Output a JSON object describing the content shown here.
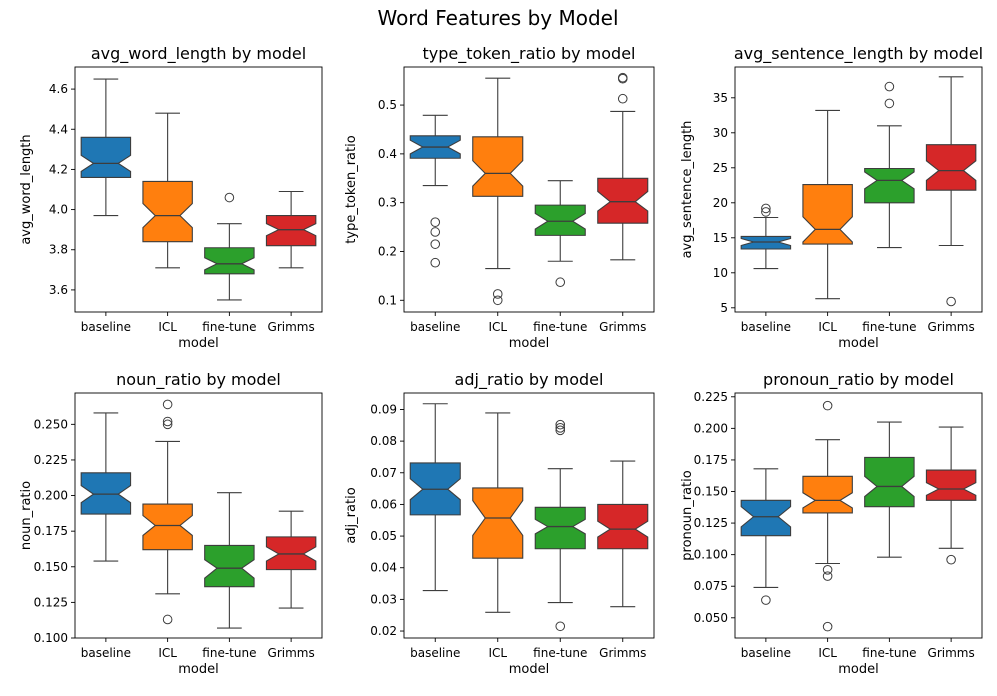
{
  "figure": {
    "title": "Word Features by Model"
  },
  "colors": {
    "baseline": "#1f77b4",
    "ICL": "#ff7f0e",
    "fine-tune": "#2ca02c",
    "Grimms": "#d62728",
    "line": "#3d3d3d"
  },
  "chart_data": [
    {
      "type": "box",
      "title": "avg_word_length by model",
      "xlabel": "model",
      "ylabel": "avg_word_length",
      "categories": [
        "baseline",
        "ICL",
        "fine-tune",
        "Grimms"
      ],
      "ylim": [
        3.49,
        4.71
      ],
      "yticks": [
        3.6,
        3.8,
        4.0,
        4.2,
        4.4,
        4.6
      ],
      "yticklabels": [
        "3.6",
        "3.8",
        "4.0",
        "4.2",
        "4.4",
        "4.6"
      ],
      "boxes": [
        {
          "whislo": 3.97,
          "q1": 4.16,
          "med": 4.23,
          "q3": 4.36,
          "whishi": 4.65,
          "notch": [
            4.19,
            4.27
          ],
          "fliers": []
        },
        {
          "whislo": 3.71,
          "q1": 3.84,
          "med": 3.97,
          "q3": 4.14,
          "whishi": 4.48,
          "notch": [
            3.91,
            4.03
          ],
          "fliers": []
        },
        {
          "whislo": 3.55,
          "q1": 3.68,
          "med": 3.73,
          "q3": 3.81,
          "whishi": 3.93,
          "notch": [
            3.7,
            3.76
          ],
          "fliers": [
            4.06
          ]
        },
        {
          "whislo": 3.71,
          "q1": 3.82,
          "med": 3.9,
          "q3": 3.97,
          "whishi": 4.09,
          "notch": [
            3.87,
            3.93
          ],
          "fliers": []
        }
      ]
    },
    {
      "type": "box",
      "title": "type_token_ratio by model",
      "xlabel": "model",
      "ylabel": "type_token_ratio",
      "categories": [
        "baseline",
        "ICL",
        "fine-tune",
        "Grimms"
      ],
      "ylim": [
        0.076,
        0.578
      ],
      "yticks": [
        0.1,
        0.2,
        0.3,
        0.4,
        0.5
      ],
      "yticklabels": [
        "0.1",
        "0.2",
        "0.3",
        "0.4",
        "0.5"
      ],
      "boxes": [
        {
          "whislo": 0.335,
          "q1": 0.391,
          "med": 0.414,
          "q3": 0.437,
          "whishi": 0.479,
          "notch": [
            0.4,
            0.428
          ],
          "fliers": [
            0.26,
            0.24,
            0.215,
            0.177
          ]
        },
        {
          "whislo": 0.165,
          "q1": 0.313,
          "med": 0.36,
          "q3": 0.435,
          "whishi": 0.555,
          "notch": [
            0.334,
            0.386
          ],
          "fliers": [
            0.113,
            0.1
          ]
        },
        {
          "whislo": 0.18,
          "q1": 0.233,
          "med": 0.262,
          "q3": 0.295,
          "whishi": 0.345,
          "notch": [
            0.246,
            0.278
          ],
          "fliers": [
            0.137
          ]
        },
        {
          "whislo": 0.183,
          "q1": 0.258,
          "med": 0.302,
          "q3": 0.35,
          "whishi": 0.487,
          "notch": [
            0.283,
            0.323
          ],
          "fliers": [
            0.556,
            0.554,
            0.513
          ]
        }
      ]
    },
    {
      "type": "box",
      "title": "avg_sentence_length by model",
      "xlabel": "model",
      "ylabel": "avg_sentence_length",
      "categories": [
        "baseline",
        "ICL",
        "fine-tune",
        "Grimms"
      ],
      "ylim": [
        4.4,
        39.4
      ],
      "yticks": [
        5,
        10,
        15,
        20,
        25,
        30,
        35
      ],
      "yticklabels": [
        "5",
        "10",
        "15",
        "20",
        "25",
        "30",
        "35"
      ],
      "boxes": [
        {
          "whislo": 10.6,
          "q1": 13.4,
          "med": 14.4,
          "q3": 15.2,
          "whishi": 17.9,
          "notch": [
            13.9,
            14.9
          ],
          "fliers": [
            19.2,
            18.7
          ]
        },
        {
          "whislo": 6.3,
          "q1": 14.1,
          "med": 16.2,
          "q3": 22.6,
          "whishi": 33.2,
          "notch": [
            14.4,
            18.0
          ],
          "fliers": []
        },
        {
          "whislo": 13.6,
          "q1": 20.0,
          "med": 23.2,
          "q3": 24.9,
          "whishi": 31.0,
          "notch": [
            22.0,
            24.4
          ],
          "fliers": [
            36.6,
            34.2
          ]
        },
        {
          "whislo": 13.9,
          "q1": 21.8,
          "med": 24.6,
          "q3": 28.3,
          "whishi": 38.0,
          "notch": [
            23.2,
            26.0
          ],
          "fliers": [
            5.9
          ]
        }
      ]
    },
    {
      "type": "box",
      "title": "noun_ratio by model",
      "xlabel": "model",
      "ylabel": "noun_ratio",
      "categories": [
        "baseline",
        "ICL",
        "fine-tune",
        "Grimms"
      ],
      "ylim": [
        0.1,
        0.272
      ],
      "yticks": [
        0.1,
        0.125,
        0.15,
        0.175,
        0.2,
        0.225,
        0.25
      ],
      "yticklabels": [
        "0.100",
        "0.125",
        "0.150",
        "0.175",
        "0.200",
        "0.225",
        "0.250"
      ],
      "boxes": [
        {
          "whislo": 0.154,
          "q1": 0.187,
          "med": 0.201,
          "q3": 0.216,
          "whishi": 0.258,
          "notch": [
            0.195,
            0.207
          ],
          "fliers": []
        },
        {
          "whislo": 0.131,
          "q1": 0.162,
          "med": 0.179,
          "q3": 0.194,
          "whishi": 0.238,
          "notch": [
            0.172,
            0.186
          ],
          "fliers": [
            0.264,
            0.252,
            0.25,
            0.113
          ]
        },
        {
          "whislo": 0.107,
          "q1": 0.136,
          "med": 0.149,
          "q3": 0.165,
          "whishi": 0.202,
          "notch": [
            0.142,
            0.155
          ],
          "fliers": []
        },
        {
          "whislo": 0.121,
          "q1": 0.148,
          "med": 0.159,
          "q3": 0.171,
          "whishi": 0.189,
          "notch": [
            0.154,
            0.164
          ],
          "fliers": []
        }
      ]
    },
    {
      "type": "box",
      "title": "adj_ratio by model",
      "xlabel": "model",
      "ylabel": "adj_ratio",
      "categories": [
        "baseline",
        "ICL",
        "fine-tune",
        "Grimms"
      ],
      "ylim": [
        0.0178,
        0.0952
      ],
      "yticks": [
        0.02,
        0.03,
        0.04,
        0.05,
        0.06,
        0.07,
        0.08,
        0.09
      ],
      "yticklabels": [
        "0.02",
        "0.03",
        "0.04",
        "0.05",
        "0.06",
        "0.07",
        "0.08",
        "0.09"
      ],
      "boxes": [
        {
          "whislo": 0.0328,
          "q1": 0.0567,
          "med": 0.0648,
          "q3": 0.0731,
          "whishi": 0.0918,
          "notch": [
            0.0615,
            0.0681
          ],
          "fliers": []
        },
        {
          "whislo": 0.0259,
          "q1": 0.043,
          "med": 0.0557,
          "q3": 0.0652,
          "whishi": 0.0889,
          "notch": [
            0.0502,
            0.0612
          ],
          "fliers": []
        },
        {
          "whislo": 0.029,
          "q1": 0.046,
          "med": 0.053,
          "q3": 0.0591,
          "whishi": 0.0713,
          "notch": [
            0.0507,
            0.0553
          ],
          "fliers": [
            0.0852,
            0.0842,
            0.0834,
            0.0215
          ]
        },
        {
          "whislo": 0.0277,
          "q1": 0.046,
          "med": 0.0522,
          "q3": 0.06,
          "whishi": 0.0737,
          "notch": [
            0.0497,
            0.0547
          ],
          "fliers": []
        }
      ]
    },
    {
      "type": "box",
      "title": "pronoun_ratio by model",
      "xlabel": "model",
      "ylabel": "pronoun_ratio",
      "categories": [
        "baseline",
        "ICL",
        "fine-tune",
        "Grimms"
      ],
      "ylim": [
        0.034,
        0.228
      ],
      "yticks": [
        0.05,
        0.075,
        0.1,
        0.125,
        0.15,
        0.175,
        0.2,
        0.225
      ],
      "yticklabels": [
        "0.050",
        "0.075",
        "0.100",
        "0.125",
        "0.150",
        "0.175",
        "0.200",
        "0.225"
      ],
      "boxes": [
        {
          "whislo": 0.074,
          "q1": 0.115,
          "med": 0.13,
          "q3": 0.143,
          "whishi": 0.168,
          "notch": [
            0.122,
            0.138
          ],
          "fliers": [
            0.064
          ]
        },
        {
          "whislo": 0.093,
          "q1": 0.133,
          "med": 0.143,
          "q3": 0.162,
          "whishi": 0.191,
          "notch": [
            0.137,
            0.149
          ],
          "fliers": [
            0.218,
            0.088,
            0.083,
            0.043
          ]
        },
        {
          "whislo": 0.098,
          "q1": 0.138,
          "med": 0.154,
          "q3": 0.177,
          "whishi": 0.205,
          "notch": [
            0.146,
            0.162
          ],
          "fliers": []
        },
        {
          "whislo": 0.105,
          "q1": 0.143,
          "med": 0.152,
          "q3": 0.167,
          "whishi": 0.201,
          "notch": [
            0.147,
            0.157
          ],
          "fliers": [
            0.096
          ]
        }
      ]
    }
  ]
}
